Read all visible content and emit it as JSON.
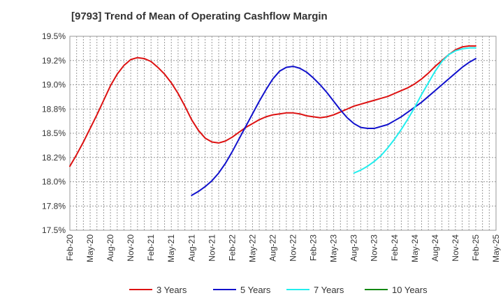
{
  "chart_data": {
    "type": "line",
    "title": "[9793]  Trend of Mean of Operating Cashflow Margin",
    "xlabel": "",
    "ylabel": "",
    "ylim": [
      17.5,
      19.5
    ],
    "yticks": [
      "17.5%",
      "17.8%",
      "18.0%",
      "18.2%",
      "18.5%",
      "18.8%",
      "19.0%",
      "19.2%",
      "19.5%"
    ],
    "xticks": [
      "Feb-20",
      "May-20",
      "Aug-20",
      "Nov-20",
      "Feb-21",
      "May-21",
      "Aug-21",
      "Nov-21",
      "Feb-22",
      "May-22",
      "Aug-22",
      "Nov-22",
      "Feb-23",
      "May-23",
      "Aug-23",
      "Nov-23",
      "Feb-24",
      "May-24",
      "Aug-24",
      "Nov-24",
      "Feb-25",
      "May-25"
    ],
    "grid": true,
    "legend_position": "bottom",
    "series": [
      {
        "name": "3 Years",
        "color": "#dd1111",
        "x": [
          "2020-02",
          "2020-03",
          "2020-04",
          "2020-05",
          "2020-06",
          "2020-07",
          "2020-08",
          "2020-09",
          "2020-10",
          "2020-11",
          "2020-12",
          "2021-01",
          "2021-02",
          "2021-03",
          "2021-04",
          "2021-05",
          "2021-06",
          "2021-07",
          "2021-08",
          "2021-09",
          "2021-10",
          "2021-11",
          "2021-12",
          "2022-01",
          "2022-02",
          "2022-03",
          "2022-04",
          "2022-05",
          "2022-06",
          "2022-07",
          "2022-08",
          "2022-09",
          "2022-10",
          "2022-11",
          "2022-12",
          "2023-01",
          "2023-02",
          "2023-03",
          "2023-04",
          "2023-05",
          "2023-06",
          "2023-07",
          "2023-08",
          "2023-09",
          "2023-10",
          "2023-11",
          "2023-12",
          "2024-01",
          "2024-02",
          "2024-03",
          "2024-04",
          "2024-05",
          "2024-06",
          "2024-07",
          "2024-08",
          "2024-09",
          "2024-10",
          "2024-11",
          "2024-12",
          "2025-01",
          "2025-02"
        ],
        "values": [
          18.16,
          18.28,
          18.41,
          18.55,
          18.69,
          18.84,
          18.99,
          19.11,
          19.2,
          19.26,
          19.28,
          19.27,
          19.24,
          19.18,
          19.11,
          19.02,
          18.91,
          18.78,
          18.64,
          18.53,
          18.45,
          18.41,
          18.4,
          18.42,
          18.46,
          18.51,
          18.56,
          18.6,
          18.64,
          18.67,
          18.69,
          18.7,
          18.71,
          18.71,
          18.7,
          18.68,
          18.67,
          18.66,
          18.67,
          18.69,
          18.72,
          18.75,
          18.78,
          18.8,
          18.82,
          18.84,
          18.86,
          18.88,
          18.91,
          18.94,
          18.97,
          19.01,
          19.06,
          19.12,
          19.19,
          19.25,
          19.31,
          19.36,
          19.39,
          19.4,
          19.4
        ]
      },
      {
        "name": "5 Years",
        "color": "#1111cc",
        "x": [
          "2021-08",
          "2021-09",
          "2021-10",
          "2021-11",
          "2021-12",
          "2022-01",
          "2022-02",
          "2022-03",
          "2022-04",
          "2022-05",
          "2022-06",
          "2022-07",
          "2022-08",
          "2022-09",
          "2022-10",
          "2022-11",
          "2022-12",
          "2023-01",
          "2023-02",
          "2023-03",
          "2023-04",
          "2023-05",
          "2023-06",
          "2023-07",
          "2023-08",
          "2023-09",
          "2023-10",
          "2023-11",
          "2023-12",
          "2024-01",
          "2024-02",
          "2024-03",
          "2024-04",
          "2024-05",
          "2024-06",
          "2024-07",
          "2024-08",
          "2024-09",
          "2024-10",
          "2024-11",
          "2024-12",
          "2025-01",
          "2025-02"
        ],
        "values": [
          17.86,
          17.9,
          17.95,
          18.01,
          18.09,
          18.19,
          18.31,
          18.44,
          18.57,
          18.7,
          18.83,
          18.95,
          19.06,
          19.14,
          19.18,
          19.19,
          19.17,
          19.13,
          19.07,
          19.0,
          18.92,
          18.83,
          18.74,
          18.66,
          18.6,
          18.56,
          18.55,
          18.55,
          18.57,
          18.59,
          18.63,
          18.67,
          18.72,
          18.77,
          18.82,
          18.88,
          18.94,
          19.0,
          19.06,
          19.12,
          19.18,
          19.23,
          19.27
        ]
      },
      {
        "name": "7 Years",
        "color": "#22eeee",
        "x": [
          "2023-08",
          "2023-09",
          "2023-10",
          "2023-11",
          "2023-12",
          "2024-01",
          "2024-02",
          "2024-03",
          "2024-04",
          "2024-05",
          "2024-06",
          "2024-07",
          "2024-08",
          "2024-09",
          "2024-10",
          "2024-11",
          "2024-12",
          "2025-01",
          "2025-02"
        ],
        "values": [
          18.09,
          18.12,
          18.16,
          18.21,
          18.27,
          18.35,
          18.44,
          18.54,
          18.65,
          18.77,
          18.9,
          19.02,
          19.14,
          19.24,
          19.31,
          19.35,
          19.37,
          19.38,
          19.38
        ]
      },
      {
        "name": "10 Years",
        "color": "#118811",
        "x": [],
        "values": []
      }
    ]
  }
}
